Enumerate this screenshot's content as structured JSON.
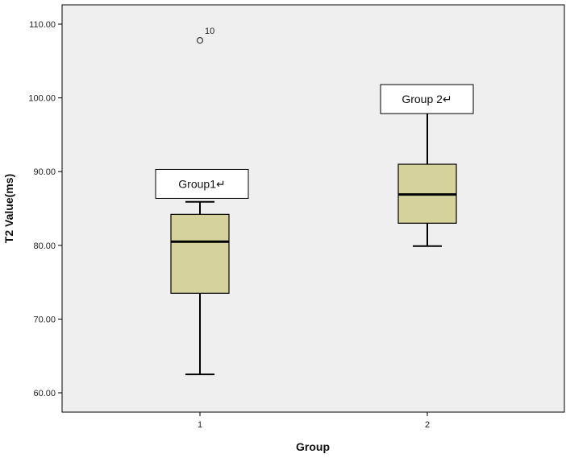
{
  "chart_data": {
    "type": "box",
    "xlabel": "Group",
    "ylabel": "T2 Value(ms)",
    "ylim": [
      57,
      112
    ],
    "yticks": [
      "60.00",
      "70.00",
      "80.00",
      "90.00",
      "100.00",
      "110.00"
    ],
    "ytick_values": [
      60,
      70,
      80,
      90,
      100,
      110
    ],
    "categories": [
      "1",
      "2"
    ],
    "grid": false,
    "colors": {
      "plot_background": "#efefef",
      "box_fill": "#d6d29b",
      "stroke": "#000000"
    },
    "boxes": [
      {
        "category": "1",
        "annotation": "Group1↵",
        "whisker_low": 62.5,
        "q1": 73.5,
        "median": 80.5,
        "q3": 84.2,
        "whisker_high": 85.9,
        "outliers": [
          {
            "value": 107.8,
            "label": "10"
          }
        ]
      },
      {
        "category": "2",
        "annotation": "Group 2↵",
        "whisker_low": 79.9,
        "q1": 83.0,
        "median": 86.9,
        "q3": 91.0,
        "whisker_high": 100.7,
        "outliers": []
      }
    ]
  }
}
